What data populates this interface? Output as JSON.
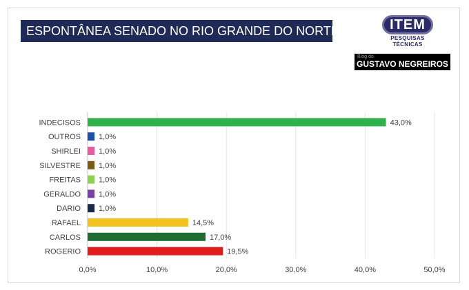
{
  "title": "ESPONTÂNEA SENADO NO RIO GRANDE DO NORTE",
  "logo": {
    "name": "ITEM",
    "subtitle": "PESQUISAS TÉCNICAS"
  },
  "blog": {
    "small": "Blog do",
    "name": "GUSTAVO NEGREIROS"
  },
  "chart_data": {
    "type": "bar",
    "orientation": "horizontal",
    "title": "ESPONTÂNEA SENADO NO RIO GRANDE DO NORTE",
    "categories": [
      "INDECISOS",
      "OUTROS",
      "SHIRLEI",
      "SILVESTRE",
      "FREITAS",
      "GERALDO",
      "DARIO",
      "RAFAEL",
      "CARLOS",
      "ROGERIO"
    ],
    "values": [
      43.0,
      1.0,
      1.0,
      1.0,
      1.0,
      1.0,
      1.0,
      14.5,
      17.0,
      19.5
    ],
    "value_labels": [
      "43,0%",
      "1,0%",
      "1,0%",
      "1,0%",
      "1,0%",
      "1,0%",
      "1,0%",
      "14,5%",
      "17,0%",
      "19,5%"
    ],
    "colors": [
      "#2fb24c",
      "#1f4ea8",
      "#ea5a9e",
      "#7a5b12",
      "#8fd14f",
      "#7b3fa8",
      "#1c2a4a",
      "#f2c21c",
      "#1e6b34",
      "#e01c1c"
    ],
    "xlim": [
      0,
      50
    ],
    "xticks": [
      0,
      10,
      20,
      30,
      40,
      50
    ],
    "xtick_labels": [
      "0,0%",
      "10,0%",
      "20,0%",
      "30,0%",
      "40,0%",
      "50,0%"
    ],
    "grid": true
  }
}
